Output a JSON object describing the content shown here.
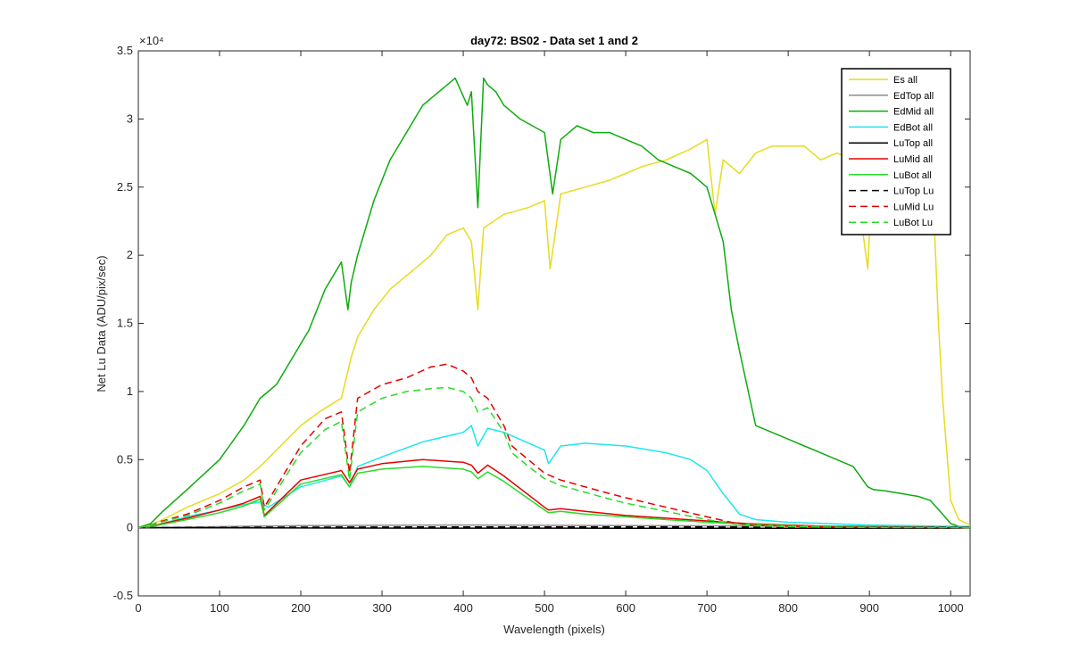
{
  "chart_data": {
    "type": "line",
    "title": "day72: BS02 - Data set 1 and 2",
    "xlabel": "Wavelength (pixels)",
    "ylabel": "Net Lu Data (ADU/pix/sec)",
    "xlim": [
      0,
      1024
    ],
    "ylim": [
      -5000,
      35000
    ],
    "y_exponent_label": "×10⁴",
    "x_ticks": [
      0,
      100,
      200,
      300,
      400,
      500,
      600,
      700,
      800,
      900,
      1000
    ],
    "x_tick_labels": [
      "0",
      "100",
      "200",
      "300",
      "400",
      "500",
      "600",
      "700",
      "800",
      "900",
      "1000"
    ],
    "y_ticks": [
      -5000,
      0,
      5000,
      10000,
      15000,
      20000,
      25000,
      30000,
      35000
    ],
    "y_tick_labels": [
      "-0.5",
      "0",
      "0.5",
      "1",
      "1.5",
      "2",
      "2.5",
      "3",
      "3.5"
    ],
    "grid": false,
    "legend_position": "top-right",
    "series": [
      {
        "name": "Es  all",
        "color": "#e6dc1e",
        "dash": "solid",
        "x": [
          0,
          15,
          30,
          60,
          100,
          130,
          150,
          175,
          200,
          225,
          250,
          262,
          270,
          290,
          310,
          340,
          360,
          380,
          400,
          410,
          418,
          425,
          450,
          480,
          500,
          507,
          520,
          550,
          580,
          600,
          620,
          650,
          680,
          700,
          710,
          720,
          740,
          760,
          780,
          800,
          820,
          840,
          860,
          880,
          898,
          905,
          920,
          940,
          960,
          975,
          980,
          985,
          990,
          1000,
          1010,
          1024
        ],
        "y": [
          0,
          200,
          600,
          1500,
          2500,
          3500,
          4500,
          6000,
          7500,
          8600,
          9500,
          12500,
          14000,
          16000,
          17500,
          19000,
          20000,
          21500,
          22000,
          21000,
          16000,
          22000,
          23000,
          23500,
          24000,
          19000,
          24500,
          25000,
          25500,
          26000,
          26500,
          27000,
          27800,
          28500,
          23000,
          27000,
          26000,
          27500,
          28000,
          28000,
          28000,
          27000,
          27500,
          27000,
          19000,
          28000,
          27500,
          27000,
          26500,
          25000,
          22000,
          15000,
          9500,
          2000,
          600,
          200
        ]
      },
      {
        "name": "EdTop  all",
        "color": "#8c8c8c",
        "dash": "solid",
        "x": [
          0,
          100,
          200,
          300,
          400,
          500,
          600,
          700,
          800,
          900,
          1000,
          1024
        ],
        "y": [
          0,
          80,
          150,
          180,
          200,
          180,
          160,
          140,
          120,
          110,
          100,
          90
        ]
      },
      {
        "name": "EdMid  all",
        "color": "#0eab0e",
        "dash": "solid",
        "x": [
          0,
          15,
          30,
          60,
          100,
          130,
          150,
          170,
          190,
          210,
          230,
          250,
          258,
          262,
          270,
          290,
          310,
          330,
          350,
          370,
          390,
          405,
          410,
          418,
          425,
          430,
          440,
          450,
          470,
          500,
          510,
          520,
          540,
          560,
          580,
          600,
          620,
          640,
          660,
          680,
          700,
          710,
          720,
          730,
          740,
          760,
          780,
          800,
          820,
          840,
          860,
          880,
          898,
          905,
          920,
          940,
          960,
          975,
          990,
          1000,
          1010,
          1024
        ],
        "y": [
          0,
          300,
          1200,
          2800,
          5000,
          7500,
          9500,
          10500,
          12500,
          14500,
          17500,
          19500,
          16000,
          18000,
          20000,
          24000,
          27000,
          29000,
          31000,
          32000,
          33000,
          31000,
          32000,
          23500,
          33000,
          32500,
          32000,
          31000,
          30000,
          29000,
          24500,
          28500,
          29500,
          29000,
          29000,
          28500,
          28000,
          27000,
          26500,
          26000,
          25000,
          23000,
          21000,
          16000,
          13000,
          7500,
          7000,
          6500,
          6000,
          5500,
          5000,
          4500,
          3000,
          2800,
          2700,
          2500,
          2300,
          2000,
          1000,
          300,
          100,
          0
        ]
      },
      {
        "name": "EdBot  all",
        "color": "#1ee6f0",
        "dash": "solid",
        "x": [
          0,
          15,
          30,
          60,
          100,
          130,
          150,
          160,
          200,
          250,
          260,
          270,
          300,
          350,
          400,
          410,
          418,
          430,
          450,
          500,
          505,
          520,
          550,
          600,
          650,
          680,
          700,
          720,
          740,
          760,
          800,
          850,
          900,
          950,
          1000,
          1024
        ],
        "y": [
          0,
          100,
          300,
          800,
          1300,
          1700,
          1900,
          1500,
          3000,
          3800,
          3000,
          4500,
          5200,
          6300,
          7000,
          7500,
          6000,
          7300,
          7000,
          5700,
          4700,
          6000,
          6200,
          6000,
          5500,
          5000,
          4200,
          2500,
          1000,
          600,
          400,
          300,
          200,
          150,
          100,
          50
        ]
      },
      {
        "name": "LuTop  all",
        "color": "#000000",
        "dash": "solid",
        "x": [
          0,
          200,
          400,
          600,
          800,
          1000,
          1024
        ],
        "y": [
          0,
          -20,
          -30,
          -40,
          -40,
          -30,
          -20
        ]
      },
      {
        "name": "LuMid  all",
        "color": "#e60000",
        "dash": "solid",
        "x": [
          0,
          15,
          30,
          60,
          100,
          130,
          150,
          155,
          200,
          250,
          260,
          270,
          300,
          350,
          400,
          410,
          418,
          430,
          450,
          500,
          505,
          520,
          550,
          600,
          650,
          700,
          750,
          800,
          850,
          900,
          1000,
          1024
        ],
        "y": [
          0,
          80,
          300,
          700,
          1300,
          1800,
          2300,
          900,
          3500,
          4200,
          3300,
          4300,
          4700,
          5000,
          4800,
          4600,
          4000,
          4600,
          3800,
          1500,
          1300,
          1400,
          1200,
          900,
          700,
          500,
          300,
          200,
          100,
          60,
          30,
          10
        ]
      },
      {
        "name": "LuBot  all",
        "color": "#28dc28",
        "dash": "solid",
        "x": [
          0,
          15,
          30,
          60,
          100,
          130,
          150,
          155,
          200,
          250,
          260,
          270,
          300,
          350,
          400,
          410,
          418,
          430,
          450,
          500,
          505,
          520,
          550,
          600,
          650,
          700,
          750,
          800,
          850,
          900,
          1000,
          1024
        ],
        "y": [
          0,
          70,
          250,
          600,
          1100,
          1600,
          2100,
          800,
          3200,
          3900,
          3000,
          4000,
          4300,
          4500,
          4300,
          4100,
          3600,
          4100,
          3400,
          1300,
          1100,
          1200,
          1000,
          800,
          600,
          400,
          250,
          150,
          80,
          50,
          20,
          10
        ]
      },
      {
        "name": "LuTop  Lu",
        "color": "#000000",
        "dash": "8,5",
        "x": [
          0,
          200,
          400,
          600,
          800,
          1000,
          1024
        ],
        "y": [
          0,
          40,
          60,
          60,
          50,
          40,
          30
        ]
      },
      {
        "name": "LuMid  Lu",
        "color": "#e60000",
        "dash": "8,5",
        "x": [
          0,
          15,
          30,
          60,
          100,
          130,
          150,
          155,
          200,
          230,
          250,
          260,
          270,
          300,
          330,
          360,
          380,
          400,
          410,
          418,
          430,
          450,
          460,
          480,
          500,
          520,
          550,
          580,
          600,
          650,
          700,
          730,
          750,
          800,
          850,
          900,
          1000,
          1024
        ],
        "y": [
          0,
          200,
          500,
          1000,
          2000,
          3000,
          3500,
          1500,
          6000,
          8000,
          8500,
          4000,
          9500,
          10500,
          11000,
          11800,
          12000,
          11500,
          11000,
          10000,
          9500,
          7500,
          6000,
          5000,
          4000,
          3500,
          3000,
          2500,
          2200,
          1500,
          800,
          400,
          200,
          100,
          60,
          30,
          10,
          0
        ]
      },
      {
        "name": "LuBot  Lu",
        "color": "#28dc28",
        "dash": "8,5",
        "x": [
          0,
          15,
          30,
          60,
          100,
          130,
          150,
          155,
          200,
          230,
          250,
          260,
          270,
          300,
          330,
          360,
          380,
          400,
          410,
          418,
          430,
          450,
          460,
          480,
          500,
          520,
          550,
          580,
          600,
          650,
          700,
          730,
          750,
          800,
          850,
          900,
          1000,
          1024
        ],
        "y": [
          0,
          180,
          450,
          900,
          1800,
          2700,
          3200,
          1300,
          5500,
          7200,
          7800,
          3500,
          8500,
          9500,
          10000,
          10200,
          10300,
          10000,
          9500,
          8500,
          8800,
          7000,
          5500,
          4500,
          3600,
          3100,
          2600,
          2100,
          1800,
          1200,
          600,
          300,
          150,
          80,
          40,
          20,
          5,
          0
        ]
      }
    ]
  }
}
